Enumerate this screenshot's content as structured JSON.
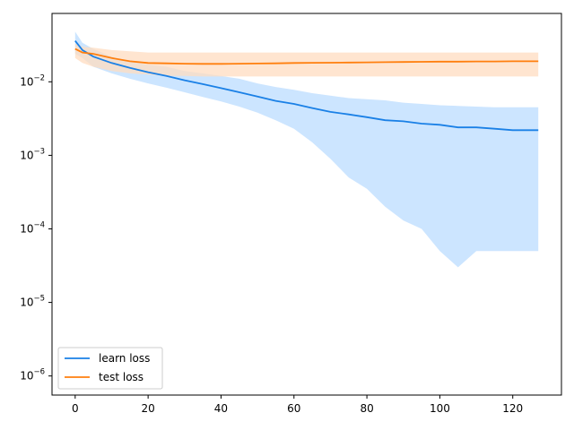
{
  "chart_data": {
    "type": "line",
    "title": "",
    "xlabel": "",
    "ylabel": "",
    "yscale": "log",
    "xlim": [
      -6.35,
      133.35
    ],
    "ylim": [
      5.5e-07,
      0.085
    ],
    "grid": false,
    "legend_position": "lower-left",
    "x_ticks": [
      0,
      20,
      40,
      60,
      80,
      100,
      120
    ],
    "x_tick_labels": [
      "0",
      "20",
      "40",
      "60",
      "80",
      "100",
      "120"
    ],
    "y_ticks": [
      1e-06,
      1e-05,
      0.0001,
      0.001,
      0.01
    ],
    "y_tick_labels": [
      {
        "base": "10",
        "exp": "−6"
      },
      {
        "base": "10",
        "exp": "−5"
      },
      {
        "base": "10",
        "exp": "−4"
      },
      {
        "base": "10",
        "exp": "−3"
      },
      {
        "base": "10",
        "exp": "−2"
      }
    ],
    "series": [
      {
        "name": "learn loss",
        "color": "#1a80e6",
        "band_color": "#cce5ff",
        "x": [
          0,
          2,
          5,
          10,
          15,
          20,
          25,
          30,
          35,
          40,
          45,
          50,
          55,
          60,
          65,
          70,
          75,
          80,
          85,
          90,
          95,
          100,
          105,
          110,
          115,
          120,
          127
        ],
        "values": [
          0.036,
          0.027,
          0.022,
          0.018,
          0.0155,
          0.0135,
          0.012,
          0.0105,
          0.0093,
          0.0082,
          0.0072,
          0.0063,
          0.0055,
          0.005,
          0.0044,
          0.0039,
          0.0036,
          0.0033,
          0.003,
          0.0029,
          0.0027,
          0.0026,
          0.0024,
          0.0024,
          0.0023,
          0.0022,
          0.0022
        ],
        "band_upper": [
          0.048,
          0.034,
          0.028,
          0.022,
          0.019,
          0.017,
          0.016,
          0.014,
          0.013,
          0.012,
          0.011,
          0.0095,
          0.0085,
          0.0078,
          0.007,
          0.0065,
          0.006,
          0.0058,
          0.0056,
          0.0052,
          0.005,
          0.0048,
          0.0047,
          0.0046,
          0.0045,
          0.0045,
          0.0045
        ],
        "band_lower": [
          0.024,
          0.021,
          0.016,
          0.013,
          0.011,
          0.0095,
          0.0083,
          0.0072,
          0.0062,
          0.0054,
          0.0046,
          0.0038,
          0.003,
          0.0023,
          0.0015,
          0.0009,
          0.0005,
          0.00035,
          0.0002,
          0.00013,
          0.0001,
          5e-05,
          3e-05,
          5e-05,
          5e-05,
          5e-05,
          5e-05
        ]
      },
      {
        "name": "test loss",
        "color": "#ff7f0e",
        "band_color": "#ffdcc0",
        "x": [
          0,
          2,
          5,
          10,
          15,
          20,
          25,
          30,
          35,
          40,
          45,
          50,
          55,
          60,
          65,
          70,
          75,
          80,
          85,
          90,
          95,
          100,
          105,
          110,
          115,
          120,
          127
        ],
        "values": [
          0.028,
          0.025,
          0.024,
          0.021,
          0.019,
          0.018,
          0.0178,
          0.0176,
          0.0175,
          0.0175,
          0.0176,
          0.0177,
          0.0178,
          0.018,
          0.0181,
          0.0182,
          0.0183,
          0.0184,
          0.0185,
          0.0186,
          0.0187,
          0.0188,
          0.0188,
          0.0189,
          0.0189,
          0.019,
          0.019
        ],
        "band_upper": [
          0.033,
          0.03,
          0.029,
          0.027,
          0.026,
          0.025,
          0.025,
          0.025,
          0.025,
          0.025,
          0.025,
          0.025,
          0.025,
          0.025,
          0.025,
          0.025,
          0.025,
          0.025,
          0.025,
          0.025,
          0.025,
          0.025,
          0.025,
          0.025,
          0.025,
          0.025,
          0.025
        ],
        "band_lower": [
          0.021,
          0.018,
          0.016,
          0.014,
          0.013,
          0.0125,
          0.012,
          0.012,
          0.0118,
          0.0118,
          0.0118,
          0.0118,
          0.0118,
          0.0118,
          0.0118,
          0.0118,
          0.0118,
          0.0118,
          0.0118,
          0.0118,
          0.0118,
          0.0118,
          0.0118,
          0.0118,
          0.0118,
          0.0118,
          0.0118
        ]
      }
    ]
  }
}
